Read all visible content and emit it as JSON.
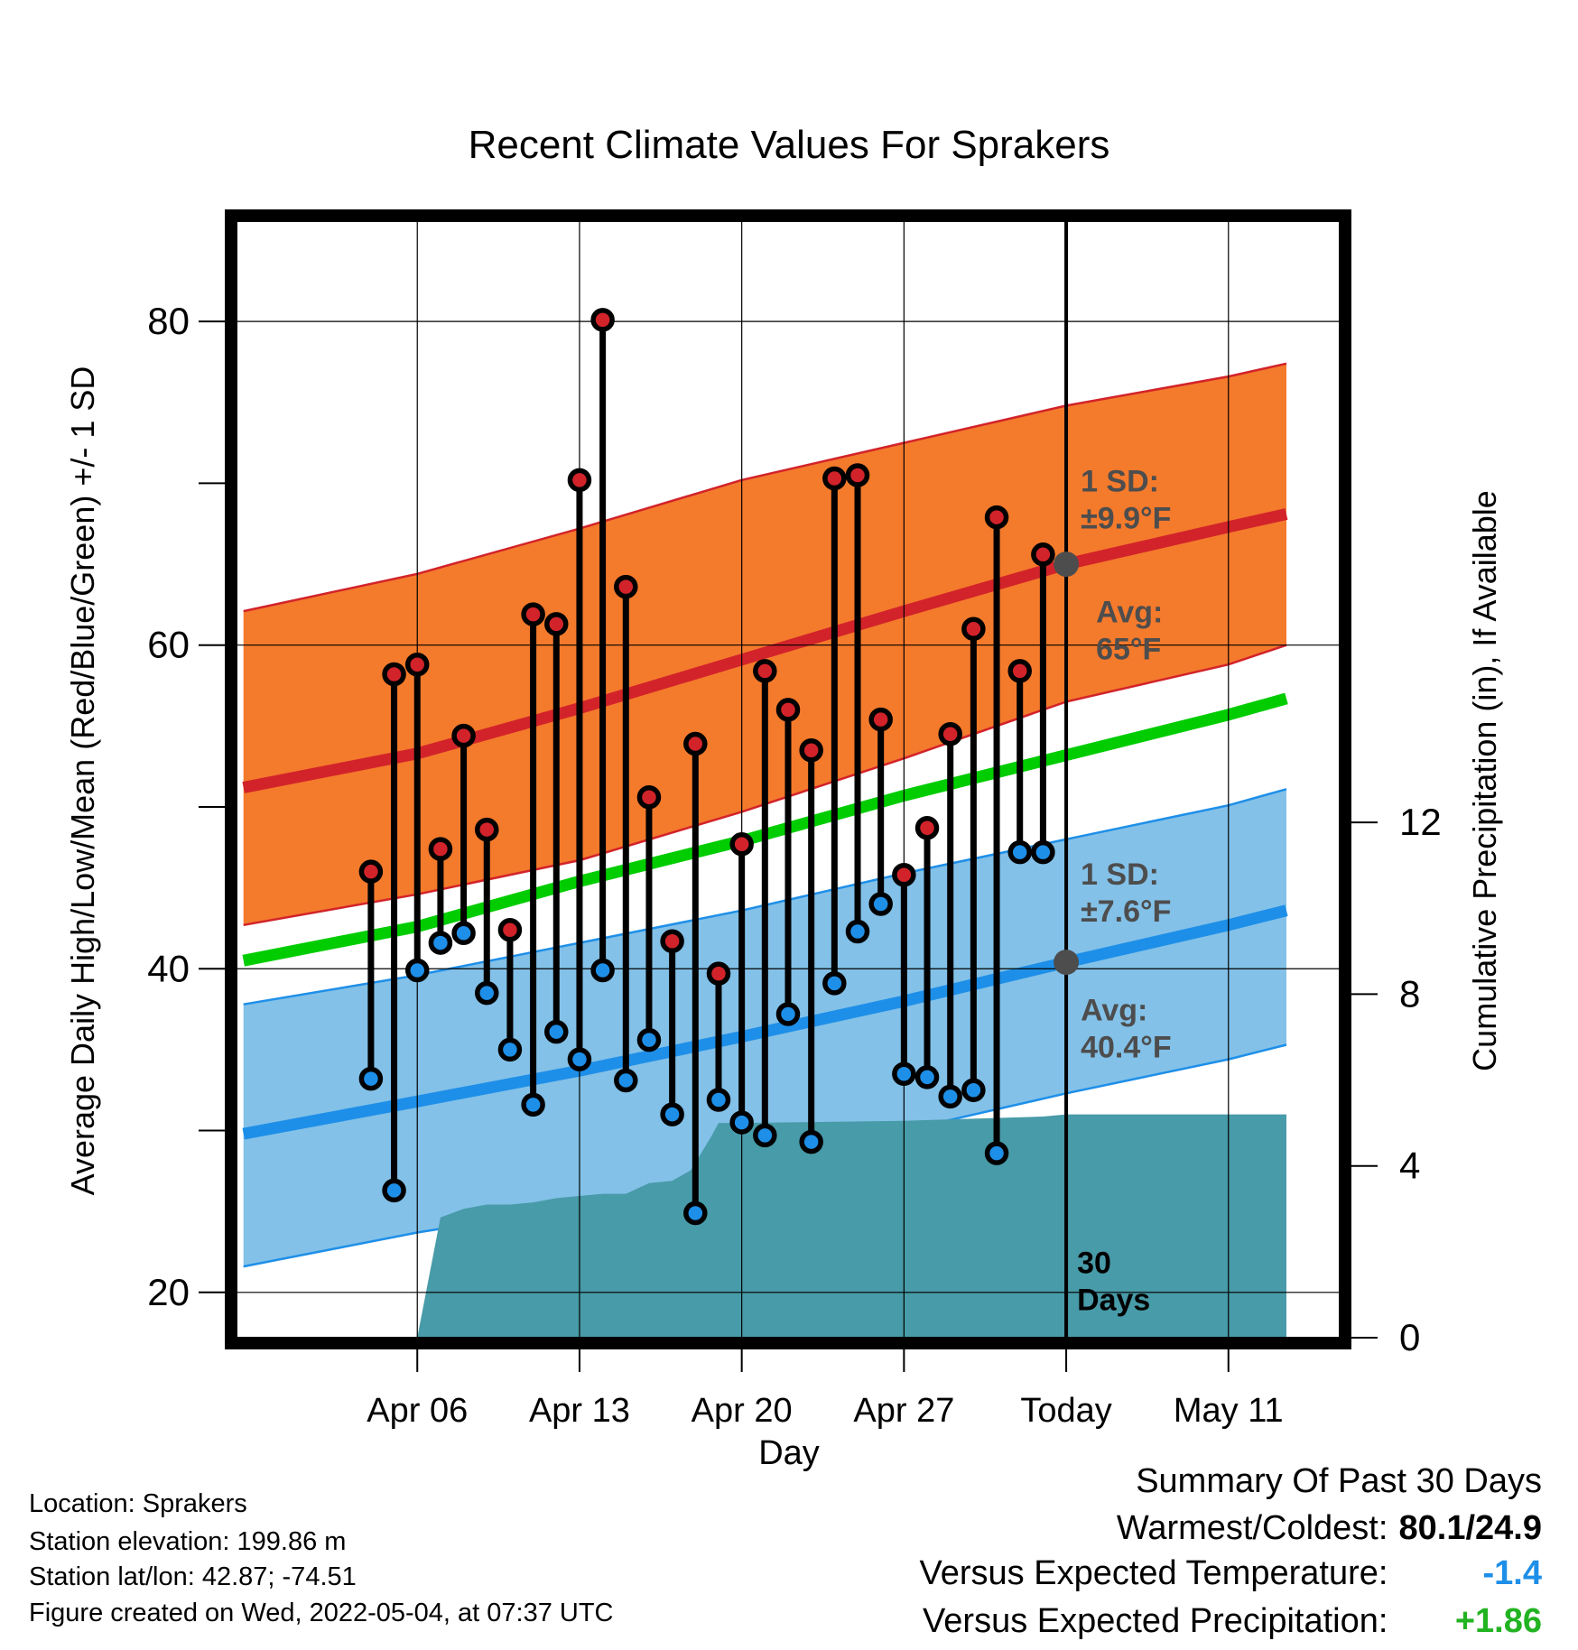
{
  "chart_data": {
    "type": "line",
    "title": "Recent Climate Values For Sprakers",
    "xlabel": "Day",
    "ylabel_left": "Average Daily High/Low/Mean (Red/Blue/Green) +/- 1 SD",
    "ylabel_right": "Cumulative Precipitation (in), If Available",
    "x_range_days": [
      -35.8,
      11.8
    ],
    "ylim_left": [
      17.2,
      86.2
    ],
    "ylim_right": [
      0,
      26
    ],
    "x_ticks": [
      {
        "day": -28,
        "label": "Apr 06"
      },
      {
        "day": -21,
        "label": "Apr 13"
      },
      {
        "day": -14,
        "label": "Apr 20"
      },
      {
        "day": -7,
        "label": "Apr 27"
      },
      {
        "day": 0,
        "label": "Today"
      },
      {
        "day": 7,
        "label": "May 11"
      }
    ],
    "y_ticks_left": [
      {
        "value": 20,
        "label": "20"
      },
      {
        "value": 30,
        "label": ""
      },
      {
        "value": 40,
        "label": "40"
      },
      {
        "value": 50,
        "label": ""
      },
      {
        "value": 60,
        "label": "60"
      },
      {
        "value": 70,
        "label": ""
      },
      {
        "value": 80,
        "label": "80"
      }
    ],
    "y_ticks_right": [
      {
        "value": 0,
        "label": "0"
      },
      {
        "value": 4,
        "label": "4"
      },
      {
        "value": 8,
        "label": "8"
      },
      {
        "value": 12,
        "label": "12"
      }
    ],
    "grid": true,
    "normal_high": {
      "x": [
        -35.5,
        -28,
        -21,
        -14,
        -7,
        0,
        7,
        9.5
      ],
      "mean": [
        51.2,
        53.3,
        56.1,
        59.1,
        62.1,
        65.0,
        67.3,
        68.1
      ],
      "sd_upper": [
        62.1,
        64.4,
        67.2,
        70.2,
        72.5,
        74.8,
        76.6,
        77.4
      ],
      "sd_lower": [
        42.7,
        44.6,
        46.7,
        49.7,
        53.0,
        56.5,
        58.8,
        60.0
      ]
    },
    "normal_low": {
      "x": [
        -35.5,
        -28,
        -21,
        -14,
        -7,
        0,
        7,
        9.5
      ],
      "mean": [
        29.8,
        31.8,
        33.7,
        35.8,
        38.0,
        40.4,
        42.7,
        43.6
      ],
      "sd_upper": [
        37.8,
        39.6,
        41.6,
        43.6,
        45.9,
        48.0,
        50.1,
        51.1
      ],
      "sd_lower": [
        21.6,
        23.7,
        25.3,
        27.7,
        30.0,
        32.3,
        34.4,
        35.3
      ]
    },
    "normal_mean": {
      "x": [
        -35.5,
        -28,
        -21,
        -14,
        -7,
        0,
        7,
        9.5
      ],
      "values": [
        40.5,
        42.6,
        45.4,
        47.9,
        50.7,
        53.2,
        55.7,
        56.7
      ]
    },
    "observed": {
      "days": [
        -30,
        -29,
        -28,
        -27,
        -26,
        -25,
        -24,
        -23,
        -22,
        -21,
        -20,
        -19,
        -18,
        -17,
        -16,
        -15,
        -14,
        -13,
        -12,
        -11,
        -10,
        -9,
        -8,
        -7,
        -6,
        -5,
        -4,
        -3,
        -2,
        -1
      ],
      "highs": [
        46.0,
        58.2,
        58.8,
        47.4,
        54.4,
        48.6,
        42.4,
        61.9,
        61.3,
        70.2,
        80.1,
        63.6,
        50.6,
        41.7,
        53.9,
        39.7,
        47.7,
        58.4,
        56.0,
        53.5,
        70.3,
        70.5,
        55.4,
        45.8,
        48.7,
        54.5,
        61.0,
        67.9,
        58.4,
        65.6
      ],
      "lows": [
        33.2,
        26.3,
        39.9,
        41.6,
        42.2,
        38.5,
        35.0,
        31.6,
        36.1,
        34.4,
        39.9,
        33.1,
        35.6,
        31.0,
        24.9,
        31.9,
        30.5,
        29.7,
        37.2,
        29.3,
        39.1,
        42.3,
        44.0,
        33.5,
        33.3,
        32.1,
        32.5,
        28.6,
        47.2,
        47.2
      ]
    },
    "precip_cumulative": {
      "days": [
        -28,
        -27,
        -26,
        -25,
        -24,
        -23,
        -22,
        -21,
        -20,
        -19,
        -18,
        -17,
        -16.2,
        -15.3,
        -15,
        -14,
        -7,
        -1,
        0,
        9.5
      ],
      "values": [
        0.0,
        2.8,
        3.0,
        3.1,
        3.1,
        3.15,
        3.25,
        3.3,
        3.35,
        3.35,
        3.6,
        3.65,
        3.9,
        4.7,
        5.0,
        5.0,
        5.05,
        5.15,
        5.2,
        5.2
      ]
    },
    "annotations": {
      "high_sd_label": [
        "1 SD:",
        "±9.9°F"
      ],
      "high_avg_label": [
        "Avg:",
        "65°F"
      ],
      "high_avg_value": 65.0,
      "low_sd_label": [
        "1 SD:",
        "±7.6°F"
      ],
      "low_avg_label": [
        "Avg:",
        "40.4°F"
      ],
      "low_avg_value": 40.4,
      "window_label": [
        "30",
        "Days"
      ]
    },
    "colors": {
      "high_band": "#f47a2c",
      "high_line": "#d2232a",
      "low_band": "#83c1e8",
      "low_line": "#1e8fe8",
      "mean_line": "#00cc00",
      "precip": "#489ba8",
      "annotation_text": "#4d4d4d"
    }
  },
  "info": {
    "location": "Location: Sprakers",
    "elevation": "Station elevation: 199.86 m",
    "latlon": "Station lat/lon: 42.87; -74.51",
    "created": "Figure created on Wed, 2022-05-04, at 07:37 UTC"
  },
  "summary": {
    "title": "Summary Of Past 30 Days",
    "warm_cold_label": "Warmest/Coldest:",
    "warm_cold_value": "80.1/24.9",
    "temp_label": "Versus Expected Temperature:",
    "temp_value": "-1.4",
    "temp_color": "#1e8fe8",
    "precip_label": "Versus Expected Precipitation:",
    "precip_value": "+1.86",
    "precip_color": "#22b322"
  }
}
